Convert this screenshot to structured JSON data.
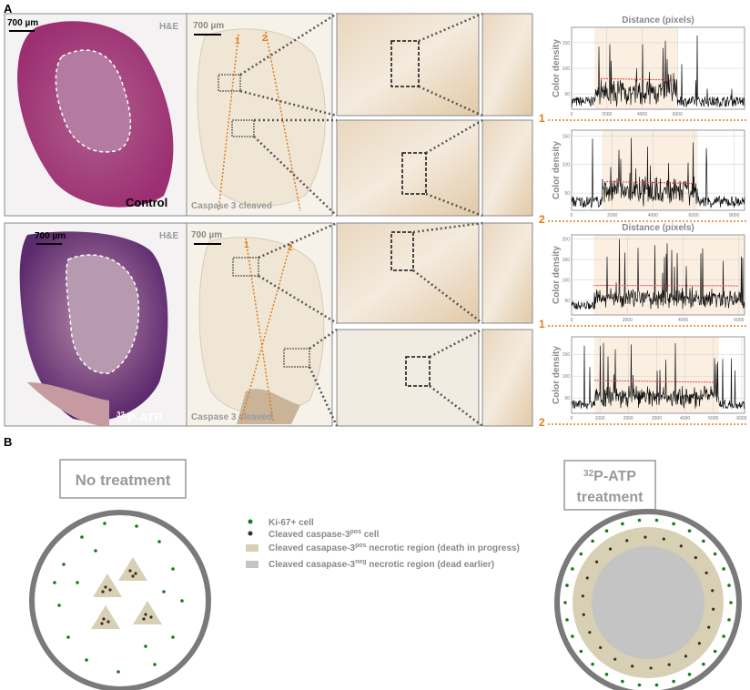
{
  "panel_a": {
    "label": "A",
    "control": {
      "scale_bar": "700 µm",
      "stain": "H&E",
      "group": "Control"
    },
    "treated": {
      "scale_bar": "700 µm",
      "stain": "H&E",
      "group_sup": "32",
      "group": "P-ATP"
    },
    "caspase_top": {
      "scale_bar": "700 µm",
      "stain": "Caspase 3 cleaved",
      "line_1": "1",
      "line_2": "2"
    },
    "caspase_bottom": {
      "scale_bar": "700 µm",
      "stain": "Caspase 3 cleaved",
      "line_1": "1",
      "line_2": "2"
    }
  },
  "panel_b": {
    "label": "B",
    "no_treatment_title": "No treatment",
    "treatment_title_sup": "32",
    "treatment_title_line1": "P-ATP",
    "treatment_title_line2": "treatment",
    "legend": [
      {
        "text": "Ki-67+ cell",
        "sup": "",
        "suffix": ""
      },
      {
        "text": "Cleaved caspase-3",
        "sup": "pos",
        "suffix": " cell"
      },
      {
        "text": "Cleaved casapase-3",
        "sup": "pos",
        "suffix": " necrotic region (death in progress)"
      },
      {
        "text": "Cleaved casapase-3",
        "sup": "neg",
        "suffix": "  necrotic region (dead earlier)"
      }
    ],
    "colors": {
      "ki67": "#1a7a1a",
      "caspase_cell": "#3a2e22",
      "necrotic_pos": "#d8d0b4",
      "necrotic_neg": "#c4c4c4",
      "tumor_border": "#7a7a7a"
    }
  },
  "chart_data": [
    {
      "type": "line",
      "title": "Distance (pixels)",
      "ylabel": "Color density",
      "line_label": "1",
      "xlim": [
        0,
        9800
      ],
      "ylim": [
        20,
        180
      ],
      "xticks": [
        0,
        2000,
        4000,
        6000
      ],
      "yticks": [
        50,
        100,
        150
      ],
      "grid": true,
      "baseline": 35,
      "highlight": [
        1300,
        6000
      ],
      "mean_line": {
        "from": 1500,
        "to": 5800,
        "start": 80,
        "end": 77
      }
    },
    {
      "type": "line",
      "title": "",
      "ylabel": "Color density",
      "line_label": "2",
      "xlim": [
        0,
        8500
      ],
      "ylim": [
        20,
        160
      ],
      "xticks": [
        0,
        2000,
        4000,
        6000,
        8000
      ],
      "yticks": [
        50,
        100,
        150
      ],
      "grid": true,
      "baseline": 35,
      "highlight": [
        1500,
        6200
      ],
      "mean_line": {
        "from": 1700,
        "to": 6000,
        "start": 70,
        "end": 67
      }
    },
    {
      "type": "line",
      "title": "Distance (pixels)",
      "ylabel": "Color density",
      "line_label": "1",
      "xlim": [
        0,
        6200
      ],
      "ylim": [
        15,
        210
      ],
      "xticks": [
        0,
        2000,
        4000,
        6000
      ],
      "yticks": [
        50,
        100,
        150,
        200
      ],
      "grid": true,
      "baseline": 38,
      "highlight": [
        800,
        6200
      ],
      "mean_line": {
        "from": 800,
        "to": 6000,
        "start": 87,
        "end": 86
      }
    },
    {
      "type": "line",
      "title": "",
      "ylabel": "Color density",
      "line_label": "2",
      "xlim": [
        0,
        6100
      ],
      "ylim": [
        15,
        190
      ],
      "xticks": [
        0,
        1000,
        2000,
        3000,
        4000,
        5000,
        6000
      ],
      "yticks": [
        50,
        100,
        150
      ],
      "grid": true,
      "baseline": 35,
      "highlight": [
        800,
        5200
      ],
      "mean_line": {
        "from": 800,
        "to": 5100,
        "start": 90,
        "end": 86
      }
    }
  ]
}
